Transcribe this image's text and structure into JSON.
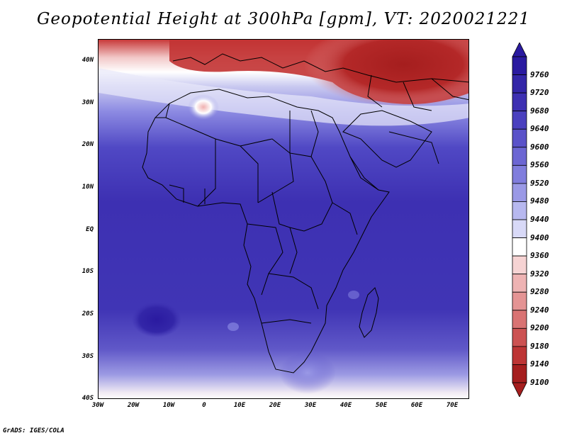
{
  "title": "Geopotential Height at 300hPa [gpm], VT: 2020021221",
  "credit": "GrADS: IGES/COLA",
  "map": {
    "projection": "latlon",
    "lon_range": [
      -30,
      75
    ],
    "lat_range": [
      -40,
      45
    ],
    "lat_ticks": [
      "40N",
      "30N",
      "20N",
      "10N",
      "EQ",
      "10S",
      "20S",
      "30S",
      "40S"
    ],
    "lon_ticks": [
      "30W",
      "20W",
      "10W",
      "0",
      "10E",
      "20E",
      "30E",
      "40E",
      "50E",
      "60E",
      "70E"
    ],
    "features": [
      "Africa",
      "Arabian Peninsula",
      "Europe (south)",
      "Madagascar",
      "country borders"
    ]
  },
  "colorbar": {
    "levels": [
      "9760",
      "9720",
      "9680",
      "9640",
      "9600",
      "9560",
      "9520",
      "9480",
      "9440",
      "9400",
      "9360",
      "9320",
      "9280",
      "9240",
      "9200",
      "9180",
      "9140",
      "9100"
    ],
    "colors": [
      "#2a1aa0",
      "#3326a8",
      "#3d30b2",
      "#4a40bf",
      "#5a52c9",
      "#6c66d3",
      "#807ddd",
      "#9a99e6",
      "#b7b8ef",
      "#d8d9f7",
      "#ffffff",
      "#f6d3d3",
      "#eeb3b3",
      "#e49494",
      "#d97373",
      "#cc5252",
      "#bd3535",
      "#a51e1e"
    ]
  }
}
